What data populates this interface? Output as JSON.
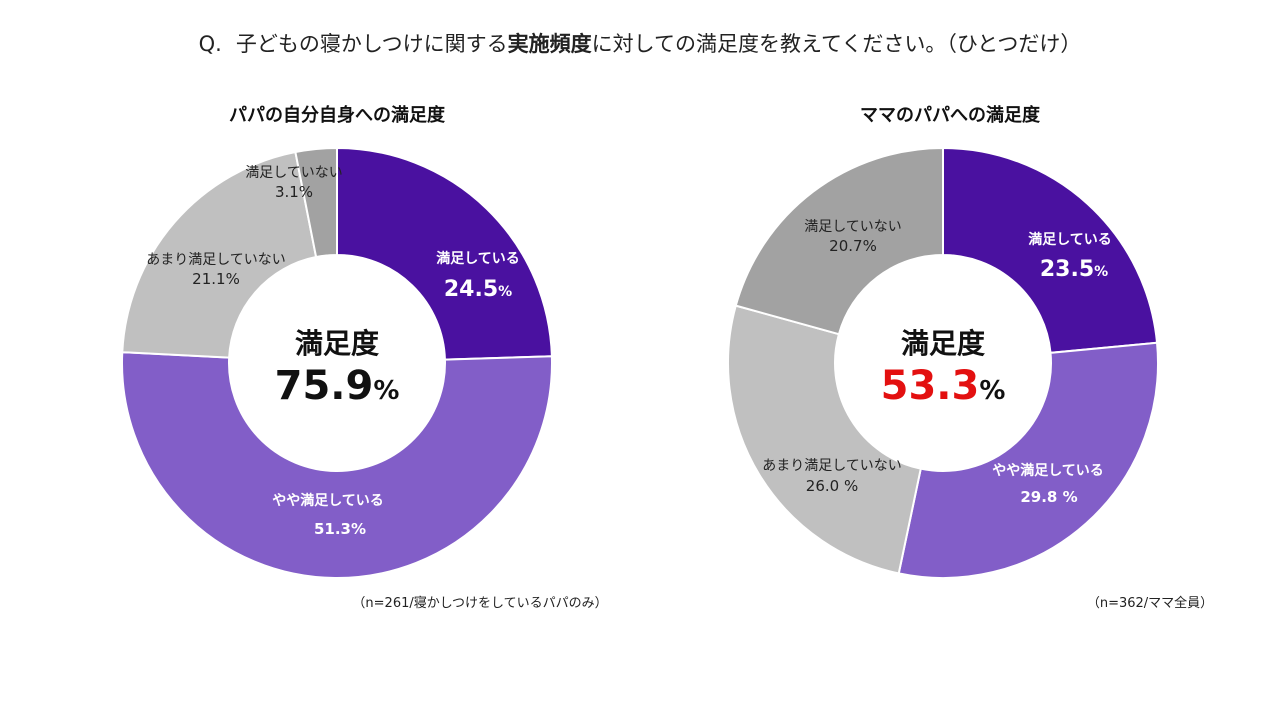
{
  "question": {
    "prefix": "Q.",
    "pre": "子どもの寝かしつけに関する",
    "bold": "実施頻度",
    "post": "に対しての満足度を教えてください。（ひとつだけ）"
  },
  "colors": {
    "satisfied": "#4a11a0",
    "somewhat_satisfied": "#825ec8",
    "not_very_satisfied": "#c0c0c0",
    "not_satisfied": "#a2a2a2",
    "highlight": "#e31010"
  },
  "chart_data": [
    {
      "type": "donut",
      "title": "パパの自分自身への満足度",
      "center_label": "満足度",
      "center_value": "75.9",
      "center_unit": "%",
      "center_value_color": "#111111",
      "note": "（n=261/寝かしつけをしているパパのみ）",
      "slices": [
        {
          "label": "満足している",
          "value": 24.5,
          "value_text": "24.5",
          "unit": "%",
          "color": "#4a11a0",
          "text_color": "#ffffff",
          "bold": true
        },
        {
          "label": "やや満足している",
          "value": 51.3,
          "value_text": "51.3%",
          "unit": "",
          "color": "#825ec8",
          "text_color": "#ffffff",
          "bold": true
        },
        {
          "label": "あまり満足していない",
          "value": 21.1,
          "value_text": "21.1%",
          "unit": "",
          "color": "#c0c0c0",
          "text_color": "#222222",
          "bold": false
        },
        {
          "label": "満足していない",
          "value": 3.1,
          "value_text": "3.1%",
          "unit": "",
          "color": "#a2a2a2",
          "text_color": "#222222",
          "bold": false
        }
      ]
    },
    {
      "type": "donut",
      "title": "ママのパパへの満足度",
      "center_label": "満足度",
      "center_value": "53.3",
      "center_unit": "%",
      "center_value_color": "#e31010",
      "note": "（n=362/ママ全員）",
      "slices": [
        {
          "label": "満足している",
          "value": 23.5,
          "value_text": "23.5",
          "unit": "%",
          "color": "#4a11a0",
          "text_color": "#ffffff",
          "bold": true
        },
        {
          "label": "やや満足している",
          "value": 29.8,
          "value_text": "29.8 %",
          "unit": "",
          "color": "#825ec8",
          "text_color": "#ffffff",
          "bold": true
        },
        {
          "label": "あまり満足していない",
          "value": 26.0,
          "value_text": "26.0 %",
          "unit": "",
          "color": "#c0c0c0",
          "text_color": "#222222",
          "bold": false
        },
        {
          "label": "満足していない",
          "value": 20.7,
          "value_text": "20.7%",
          "unit": "",
          "color": "#a2a2a2",
          "text_color": "#222222",
          "bold": false
        }
      ]
    }
  ]
}
